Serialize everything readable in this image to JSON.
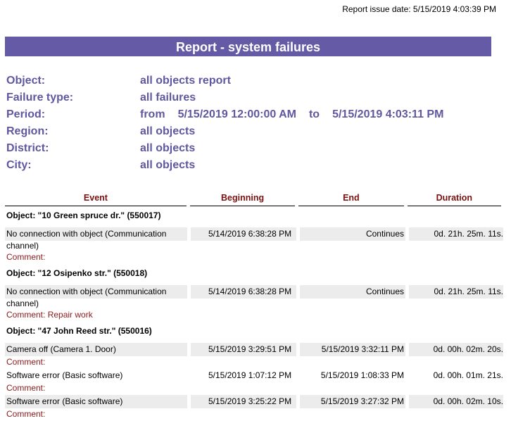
{
  "issue_date": "Report issue date: 5/15/2019 4:03:39 PM",
  "title": "Report - system failures",
  "params": [
    {
      "label": "Object:",
      "value": "all objects report"
    },
    {
      "label": "Failure type:",
      "value": "all failures"
    },
    {
      "label": "Period:",
      "from": "from",
      "start": "5/15/2019 12:00:00 AM",
      "to": "to",
      "end": "5/15/2019 4:03:11 PM"
    },
    {
      "label": "Region:",
      "value": "all objects"
    },
    {
      "label": "District:",
      "value": "all objects"
    },
    {
      "label": "City:",
      "value": "all objects"
    }
  ],
  "columns": [
    "Event",
    "Beginning",
    "End",
    "Duration"
  ],
  "comment_label": "Comment:",
  "groups": [
    {
      "object": "Object: \"10 Green spruce dr.\" (550017)",
      "events": [
        {
          "event": "No connection with object (Communication",
          "event_cont": "channel)",
          "beginning": "5/14/2019 6:38:28 PM",
          "end": "Continues",
          "duration": "0d. 21h. 25m. 11s.",
          "comment": "",
          "shaded": true
        }
      ]
    },
    {
      "object": "Object: \"12 Osipenko str.\" (550018)",
      "events": [
        {
          "event": "No connection with object (Communication",
          "event_cont": "channel)",
          "beginning": "5/14/2019 6:38:28 PM",
          "end": "Continues",
          "duration": "0d. 21h. 25m. 11s.",
          "comment": "Repair work",
          "shaded": true
        }
      ]
    },
    {
      "object": "Object: \"47 John Reed str.\" (550016)",
      "events": [
        {
          "event": "Camera off (Camera 1. Door)",
          "beginning": "5/15/2019 3:29:51 PM",
          "end": "5/15/2019 3:32:11 PM",
          "duration": "0d. 00h. 02m. 20s.",
          "comment": "",
          "shaded": true
        },
        {
          "event": "Software error (Basic software)",
          "beginning": "5/15/2019 1:07:12 PM",
          "end": "5/15/2019 1:08:33 PM",
          "duration": "0d. 00h. 01m. 21s.",
          "comment": "",
          "shaded": false
        },
        {
          "event": "Software error (Basic software)",
          "beginning": "5/15/2019 3:25:22 PM",
          "end": "5/15/2019 3:27:32 PM",
          "duration": "0d. 00h. 02m. 10s.",
          "comment": "",
          "shaded": true
        }
      ]
    }
  ]
}
